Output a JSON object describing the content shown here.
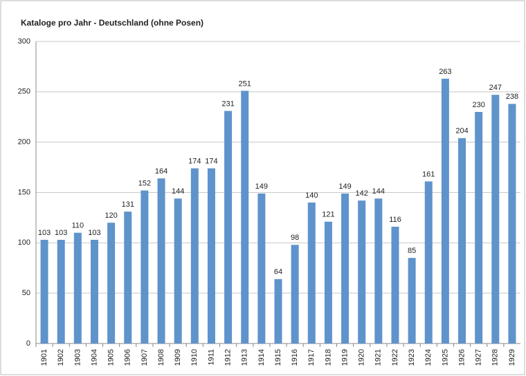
{
  "chart_data": {
    "type": "bar",
    "title": "Kataloge pro Jahr - Deutschland (ohne Posen)",
    "categories": [
      "1901",
      "1902",
      "1903",
      "1904",
      "1905",
      "1906",
      "1907",
      "1908",
      "1909",
      "1910",
      "1911",
      "1912",
      "1913",
      "1914",
      "1915",
      "1916",
      "1917",
      "1918",
      "1919",
      "1920",
      "1921",
      "1922",
      "1923",
      "1924",
      "1925",
      "1926",
      "1927",
      "1928",
      "1929"
    ],
    "values": [
      103,
      103,
      110,
      103,
      120,
      131,
      152,
      164,
      144,
      174,
      174,
      231,
      251,
      149,
      64,
      98,
      140,
      121,
      149,
      142,
      144,
      116,
      85,
      161,
      263,
      204,
      230,
      247,
      238
    ],
    "color": "#5f93cb",
    "ylim": [
      0,
      300
    ],
    "yticks": [
      0,
      50,
      100,
      150,
      200,
      250,
      300
    ],
    "grid": true
  }
}
